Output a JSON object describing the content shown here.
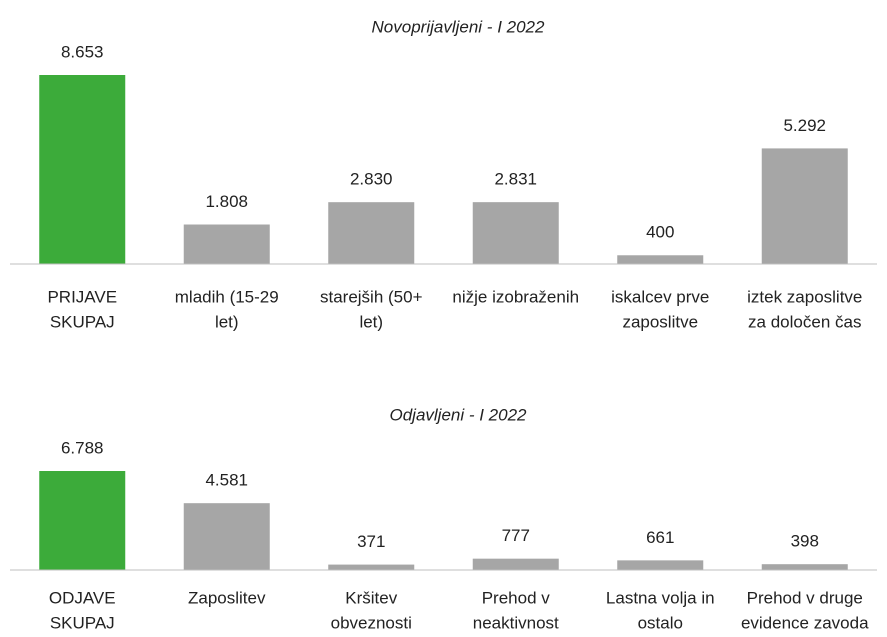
{
  "chart_data": [
    {
      "type": "bar",
      "title": "Novoprijavljeni - I 2022",
      "categories": [
        [
          "PRIJAVE",
          "SKUPAJ"
        ],
        [
          "mladih (15-29",
          "let)"
        ],
        [
          "starejših (50+",
          "let)"
        ],
        [
          "nižje izobraženih"
        ],
        [
          "iskalcev prve",
          "zaposlitve"
        ],
        [
          "iztek zaposlitve",
          "za določen čas"
        ]
      ],
      "values": [
        8653,
        1808,
        2830,
        2831,
        400,
        5292
      ],
      "value_labels": [
        "8.653",
        "1.808",
        "2.830",
        "2.831",
        "400",
        "5.292"
      ],
      "colors": [
        "#3cab3a",
        "#a6a6a6",
        "#a6a6a6",
        "#a6a6a6",
        "#a6a6a6",
        "#a6a6a6"
      ]
    },
    {
      "type": "bar",
      "title": "Odjavljeni - I 2022",
      "categories": [
        [
          "ODJAVE",
          "SKUPAJ"
        ],
        [
          "Zaposlitev"
        ],
        [
          "Kršitev",
          "obveznosti"
        ],
        [
          "Prehod v",
          "neaktivnost"
        ],
        [
          "Lastna volja in",
          "ostalo"
        ],
        [
          "Prehod v druge",
          "evidence zavoda"
        ]
      ],
      "values": [
        6788,
        4581,
        371,
        777,
        661,
        398
      ],
      "value_labels": [
        "6.788",
        "4.581",
        "371",
        "777",
        "661",
        "398"
      ],
      "colors": [
        "#3cab3a",
        "#a6a6a6",
        "#a6a6a6",
        "#a6a6a6",
        "#a6a6a6",
        "#a6a6a6"
      ]
    }
  ]
}
